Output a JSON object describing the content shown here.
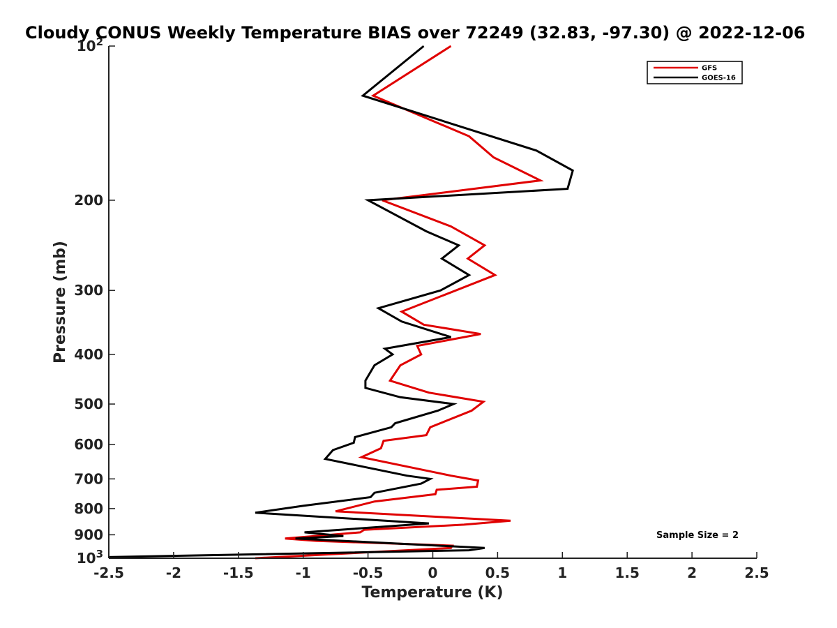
{
  "chart_data": {
    "type": "line",
    "title": "Cloudy CONUS Weekly Temperature BIAS over 72249 (32.83, -97.30) @ 2022-12-06",
    "xlabel": "Temperature (K)",
    "ylabel": "Pressure (mb)",
    "xlim": [
      -2.5,
      2.5
    ],
    "ylim": [
      1000,
      100
    ],
    "y_scale": "log",
    "x_ticks": [
      "-2.5",
      "-2",
      "-1.5",
      "-1",
      "-0.5",
      "0",
      "0.5",
      "1",
      "1.5",
      "2",
      "2.5"
    ],
    "x_tick_values": [
      -2.5,
      -2,
      -1.5,
      -1,
      -0.5,
      0,
      0.5,
      1,
      1.5,
      2,
      2.5
    ],
    "y_ticks": [
      {
        "value": 100,
        "base": "10",
        "exp": "2"
      },
      {
        "value": 200,
        "label": "200"
      },
      {
        "value": 300,
        "label": "300"
      },
      {
        "value": 400,
        "label": "400"
      },
      {
        "value": 500,
        "label": "500"
      },
      {
        "value": 600,
        "label": "600"
      },
      {
        "value": 700,
        "label": "700"
      },
      {
        "value": 800,
        "label": "800"
      },
      {
        "value": 900,
        "label": "900"
      },
      {
        "value": 1000,
        "base": "10",
        "exp": "3"
      }
    ],
    "grid": false,
    "legend_position": "top-right",
    "series": [
      {
        "name": "GFS",
        "color": "#e00000",
        "points": [
          [
            0.14,
            100
          ],
          [
            -0.46,
            125
          ],
          [
            0.28,
            150
          ],
          [
            0.47,
            165
          ],
          [
            0.83,
            183
          ],
          [
            -0.39,
            200
          ],
          [
            0.14,
            225
          ],
          [
            0.4,
            245
          ],
          [
            0.27,
            260
          ],
          [
            0.48,
            280
          ],
          [
            -0.24,
            330
          ],
          [
            -0.07,
            350
          ],
          [
            0.37,
            365
          ],
          [
            -0.12,
            385
          ],
          [
            -0.09,
            400
          ],
          [
            -0.25,
            420
          ],
          [
            -0.33,
            450
          ],
          [
            -0.03,
            475
          ],
          [
            0.39,
            495
          ],
          [
            0.3,
            515
          ],
          [
            -0.02,
            555
          ],
          [
            -0.05,
            575
          ],
          [
            -0.38,
            590
          ],
          [
            -0.4,
            610
          ],
          [
            -0.55,
            635
          ],
          [
            0.14,
            690
          ],
          [
            0.35,
            705
          ],
          [
            0.34,
            725
          ],
          [
            0.03,
            735
          ],
          [
            0.02,
            750
          ],
          [
            -0.45,
            775
          ],
          [
            -0.75,
            810
          ],
          [
            0.6,
            845
          ],
          [
            0.24,
            860
          ],
          [
            -0.53,
            880
          ],
          [
            -0.56,
            890
          ],
          [
            -1.14,
            915
          ],
          [
            -0.9,
            925
          ],
          [
            0.15,
            945
          ],
          [
            0.14,
            955
          ],
          [
            -1.37,
            1000
          ]
        ]
      },
      {
        "name": "GOES-16",
        "color": "#000000",
        "points": [
          [
            -0.07,
            100
          ],
          [
            -0.54,
            125
          ],
          [
            0.8,
            160
          ],
          [
            1.08,
            175
          ],
          [
            1.04,
            190
          ],
          [
            -0.5,
            200
          ],
          [
            -0.05,
            230
          ],
          [
            0.2,
            245
          ],
          [
            0.07,
            260
          ],
          [
            0.28,
            280
          ],
          [
            0.06,
            300
          ],
          [
            -0.42,
            325
          ],
          [
            -0.24,
            345
          ],
          [
            0.14,
            370
          ],
          [
            -0.37,
            390
          ],
          [
            -0.31,
            400
          ],
          [
            -0.45,
            420
          ],
          [
            -0.52,
            450
          ],
          [
            -0.52,
            465
          ],
          [
            -0.25,
            485
          ],
          [
            0.16,
            500
          ],
          [
            0.04,
            515
          ],
          [
            -0.29,
            545
          ],
          [
            -0.32,
            555
          ],
          [
            -0.6,
            580
          ],
          [
            -0.61,
            595
          ],
          [
            -0.77,
            615
          ],
          [
            -0.83,
            640
          ],
          [
            -0.2,
            690
          ],
          [
            -0.02,
            700
          ],
          [
            -0.09,
            715
          ],
          [
            -0.45,
            745
          ],
          [
            -0.48,
            760
          ],
          [
            -1.0,
            790
          ],
          [
            -1.37,
            815
          ],
          [
            -0.03,
            855
          ],
          [
            -0.99,
            890
          ],
          [
            -0.69,
            905
          ],
          [
            -1.06,
            915
          ],
          [
            0.4,
            955
          ],
          [
            0.28,
            965
          ],
          [
            -2.5,
            995
          ]
        ]
      }
    ],
    "annotations": [
      {
        "text": "Sample Size = 2",
        "position": "lower-right"
      }
    ]
  }
}
